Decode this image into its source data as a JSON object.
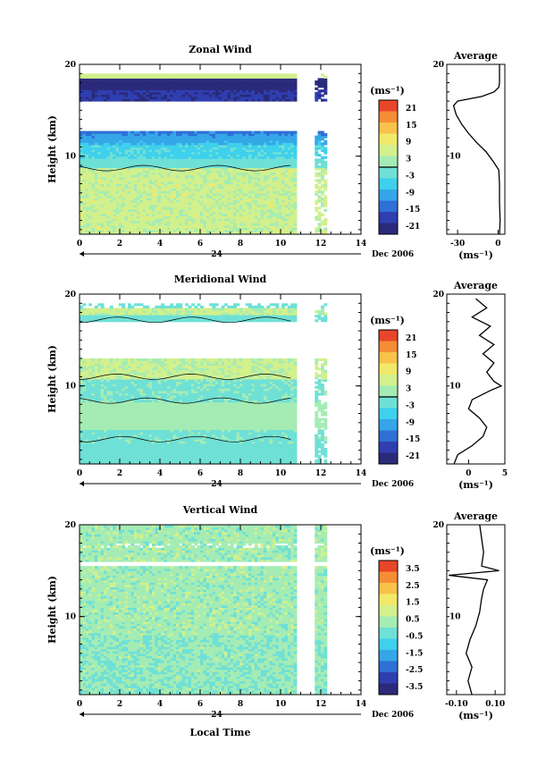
{
  "xlabel": "Local Time",
  "date_label": "Dec 2006",
  "day_label": "24",
  "units_label": "(ms⁻¹)",
  "average_title": "Average",
  "chart_data": [
    {
      "type": "heatmap",
      "title": "Zonal Wind",
      "ylabel": "Height (km)",
      "x_ticks": [
        "0",
        "2",
        "4",
        "6",
        "8",
        "10",
        "12",
        "14"
      ],
      "y_ticks": [
        "20",
        "10"
      ],
      "xlim": [
        0,
        14
      ],
      "ylim": [
        1.5,
        20
      ],
      "colorbar": {
        "label": "(ms⁻¹)",
        "ticks": [
          "21",
          "15",
          "9",
          "3",
          "-3",
          "-9",
          "-15",
          "-21"
        ],
        "range": [
          -24,
          24
        ]
      },
      "average": {
        "title": "Average",
        "xlabel": "(ms⁻¹)",
        "x_ticks": [
          "-30",
          "0"
        ],
        "xlim": [
          -38,
          5
        ],
        "profile": [
          {
            "h": 1.5,
            "v": 1.0
          },
          {
            "h": 3,
            "v": 1.5
          },
          {
            "h": 5,
            "v": 1.0
          },
          {
            "h": 7,
            "v": 1.0
          },
          {
            "h": 8.5,
            "v": 0.5
          },
          {
            "h": 9.5,
            "v": -4
          },
          {
            "h": 10.5,
            "v": -9
          },
          {
            "h": 11.5,
            "v": -16
          },
          {
            "h": 12.5,
            "v": -22
          },
          {
            "h": 13.5,
            "v": -27
          },
          {
            "h": 14.5,
            "v": -31
          },
          {
            "h": 15.5,
            "v": -33
          },
          {
            "h": 16,
            "v": -30
          },
          {
            "h": 16.5,
            "v": -12
          },
          {
            "h": 17,
            "v": -3
          },
          {
            "h": 17.5,
            "v": 0.5
          },
          {
            "h": 18,
            "v": 1.0
          },
          {
            "h": 19,
            "v": 1.0
          },
          {
            "h": 20,
            "v": 1.0
          }
        ]
      }
    },
    {
      "type": "heatmap",
      "title": "Meridional Wind",
      "ylabel": "Height (km)",
      "x_ticks": [
        "0",
        "2",
        "4",
        "6",
        "8",
        "10",
        "12",
        "14"
      ],
      "y_ticks": [
        "20",
        "10"
      ],
      "xlim": [
        0,
        14
      ],
      "ylim": [
        1.5,
        20
      ],
      "colorbar": {
        "label": "(ms⁻¹)",
        "ticks": [
          "21",
          "15",
          "9",
          "3",
          "-3",
          "-9",
          "-15",
          "-21"
        ],
        "range": [
          -24,
          24
        ]
      },
      "average": {
        "title": "Average",
        "xlabel": "(ms⁻¹)",
        "x_ticks": [
          "0",
          "5"
        ],
        "xlim": [
          -3,
          5
        ],
        "profile": [
          {
            "h": 1.5,
            "v": -2.0
          },
          {
            "h": 2.5,
            "v": -1.5
          },
          {
            "h": 3.5,
            "v": 0.5
          },
          {
            "h": 4.5,
            "v": 2.0
          },
          {
            "h": 5.5,
            "v": 2.5
          },
          {
            "h": 6.5,
            "v": 1.5
          },
          {
            "h": 7.5,
            "v": 0.0
          },
          {
            "h": 8.5,
            "v": 0.5
          },
          {
            "h": 9.5,
            "v": 3.0
          },
          {
            "h": 10,
            "v": 4.5
          },
          {
            "h": 10.5,
            "v": 3.5
          },
          {
            "h": 11.5,
            "v": 2.5
          },
          {
            "h": 12.5,
            "v": 3.5
          },
          {
            "h": 13.5,
            "v": 2.0
          },
          {
            "h": 14.5,
            "v": 3.5
          },
          {
            "h": 15.5,
            "v": 1.5
          },
          {
            "h": 16.5,
            "v": 3.0
          },
          {
            "h": 17.5,
            "v": 0.5
          },
          {
            "h": 18.5,
            "v": 2.5
          },
          {
            "h": 19.5,
            "v": 1.0
          }
        ]
      }
    },
    {
      "type": "heatmap",
      "title": "Vertical Wind",
      "ylabel": "Height (km)",
      "x_ticks": [
        "0",
        "2",
        "4",
        "6",
        "8",
        "10",
        "12",
        "14"
      ],
      "y_ticks": [
        "20",
        "10"
      ],
      "xlim": [
        0,
        14
      ],
      "ylim": [
        1.5,
        20
      ],
      "colorbar": {
        "label": "(ms⁻¹)",
        "ticks": [
          "3.5",
          "2.5",
          "1.5",
          "0.5",
          "-0.5",
          "-1.5",
          "-2.5",
          "-3.5"
        ],
        "range": [
          -4,
          4
        ]
      },
      "average": {
        "title": "Average",
        "xlabel": "(ms⁻¹)",
        "x_ticks": [
          "-0.10",
          "0.10"
        ],
        "xlim": [
          -0.15,
          0.15
        ],
        "profile": [
          {
            "h": 1.5,
            "v": -0.02
          },
          {
            "h": 3,
            "v": -0.04
          },
          {
            "h": 4.5,
            "v": -0.02
          },
          {
            "h": 6,
            "v": -0.05
          },
          {
            "h": 7.5,
            "v": -0.03
          },
          {
            "h": 9,
            "v": 0.0
          },
          {
            "h": 10.5,
            "v": 0.02
          },
          {
            "h": 12,
            "v": 0.03
          },
          {
            "h": 13,
            "v": 0.04
          },
          {
            "h": 14,
            "v": 0.06
          },
          {
            "h": 14.5,
            "v": -0.14
          },
          {
            "h": 15,
            "v": 0.12
          },
          {
            "h": 15.5,
            "v": 0.03
          },
          {
            "h": 17,
            "v": 0.04
          },
          {
            "h": 18.5,
            "v": 0.03
          },
          {
            "h": 20,
            "v": 0.02
          }
        ]
      }
    }
  ],
  "colors": {
    "scale": [
      "#2b2a7a",
      "#2f3fb0",
      "#2f6fd6",
      "#35a6e8",
      "#3ed0ec",
      "#6fe0d6",
      "#a5ecb4",
      "#d2f08c",
      "#f2e96a",
      "#f9c24b",
      "#f58d36",
      "#e8462a"
    ],
    "axis": "#000000"
  }
}
